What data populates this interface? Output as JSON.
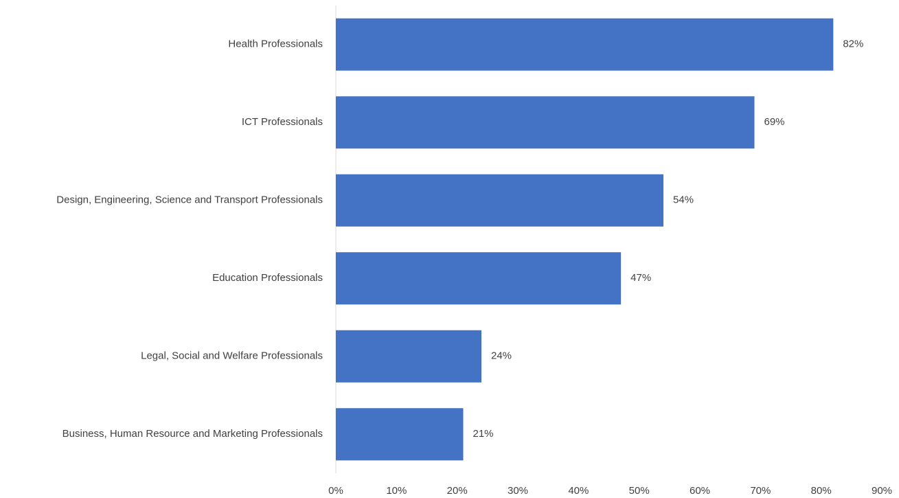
{
  "chart_data": {
    "type": "bar",
    "orientation": "horizontal",
    "categories": [
      "Health Professionals",
      "ICT Professionals",
      "Design, Engineering, Science and Transport Professionals",
      "Education Professionals",
      "Legal, Social and Welfare Professionals",
      "Business, Human Resource and Marketing Professionals"
    ],
    "values": [
      82,
      69,
      54,
      47,
      24,
      21
    ],
    "value_labels": [
      "82%",
      "69%",
      "54%",
      "47%",
      "24%",
      "21%"
    ],
    "color": "#4472c4",
    "xlim": [
      0,
      90
    ],
    "xticks": [
      {
        "value": 0,
        "label": "0%"
      },
      {
        "value": 10,
        "label": "10%"
      },
      {
        "value": 20,
        "label": "20%"
      },
      {
        "value": 30,
        "label": "30%"
      },
      {
        "value": 40,
        "label": "40%"
      },
      {
        "value": 50,
        "label": "50%"
      },
      {
        "value": 60,
        "label": "60%"
      },
      {
        "value": 70,
        "label": "70%"
      },
      {
        "value": 80,
        "label": "80%"
      },
      {
        "value": 90,
        "label": "90%"
      }
    ],
    "grid": false
  }
}
